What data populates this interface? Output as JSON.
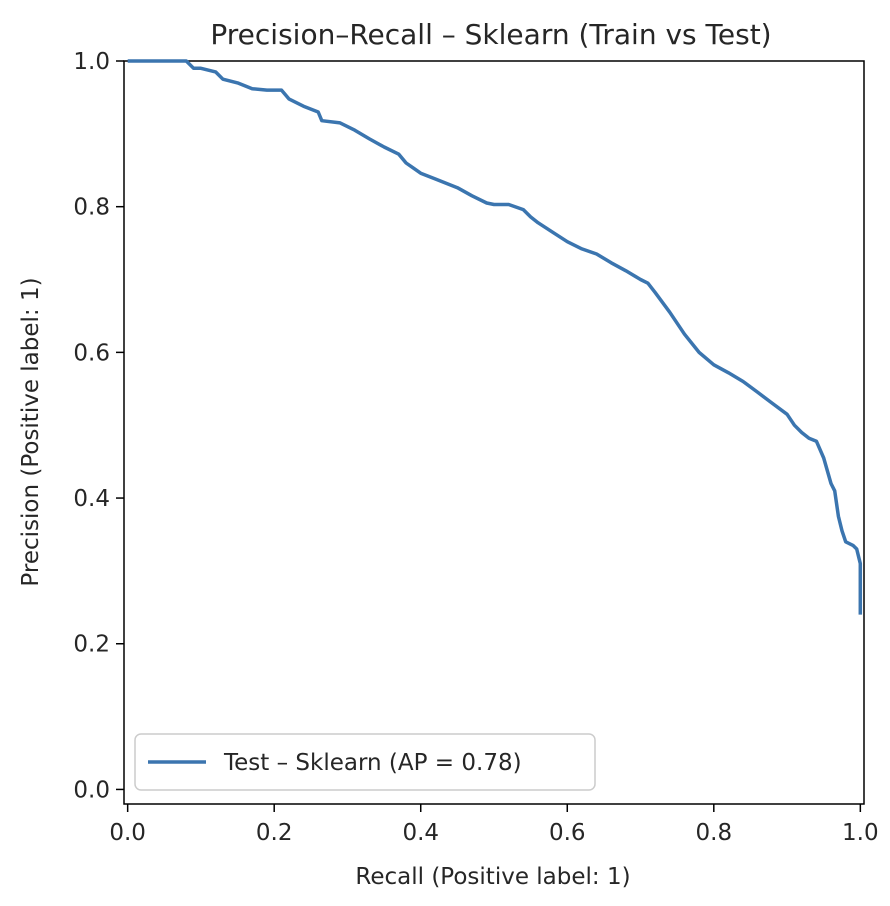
{
  "chart_data": {
    "type": "line",
    "title": "Precision–Recall – Sklearn (Train vs Test)",
    "xlabel": "Recall (Positive label: 1)",
    "ylabel": "Precision (Positive label: 1)",
    "xlim": [
      -0.005,
      1.005
    ],
    "ylim": [
      -0.02,
      1.0
    ],
    "xticks": [
      "0.0",
      "0.2",
      "0.4",
      "0.6",
      "0.8",
      "1.0"
    ],
    "yticks": [
      "0.0",
      "0.2",
      "0.4",
      "0.6",
      "0.8",
      "1.0"
    ],
    "grid": false,
    "legend_position": "lower-left",
    "series": [
      {
        "name": "Test – Sklearn (AP = 0.78)",
        "color": "#3b75af",
        "x": [
          0.0,
          0.02,
          0.05,
          0.08,
          0.09,
          0.1,
          0.12,
          0.13,
          0.15,
          0.17,
          0.19,
          0.21,
          0.22,
          0.24,
          0.26,
          0.265,
          0.29,
          0.31,
          0.33,
          0.35,
          0.37,
          0.38,
          0.39,
          0.4,
          0.42,
          0.45,
          0.47,
          0.49,
          0.5,
          0.52,
          0.54,
          0.55,
          0.56,
          0.58,
          0.6,
          0.62,
          0.64,
          0.66,
          0.68,
          0.7,
          0.71,
          0.72,
          0.74,
          0.76,
          0.78,
          0.8,
          0.82,
          0.84,
          0.86,
          0.88,
          0.9,
          0.91,
          0.92,
          0.93,
          0.94,
          0.95,
          0.96,
          0.965,
          0.97,
          0.975,
          0.98,
          0.99,
          0.995,
          1.0,
          1.0
        ],
        "y": [
          1.0,
          1.0,
          1.0,
          1.0,
          0.99,
          0.99,
          0.985,
          0.975,
          0.97,
          0.962,
          0.96,
          0.96,
          0.948,
          0.938,
          0.93,
          0.918,
          0.915,
          0.905,
          0.893,
          0.882,
          0.872,
          0.86,
          0.853,
          0.846,
          0.838,
          0.826,
          0.815,
          0.805,
          0.803,
          0.803,
          0.796,
          0.786,
          0.778,
          0.765,
          0.752,
          0.742,
          0.735,
          0.723,
          0.712,
          0.7,
          0.695,
          0.682,
          0.655,
          0.625,
          0.6,
          0.583,
          0.572,
          0.56,
          0.545,
          0.53,
          0.515,
          0.5,
          0.49,
          0.482,
          0.478,
          0.455,
          0.42,
          0.41,
          0.375,
          0.355,
          0.34,
          0.335,
          0.33,
          0.31,
          0.24
        ]
      }
    ]
  }
}
